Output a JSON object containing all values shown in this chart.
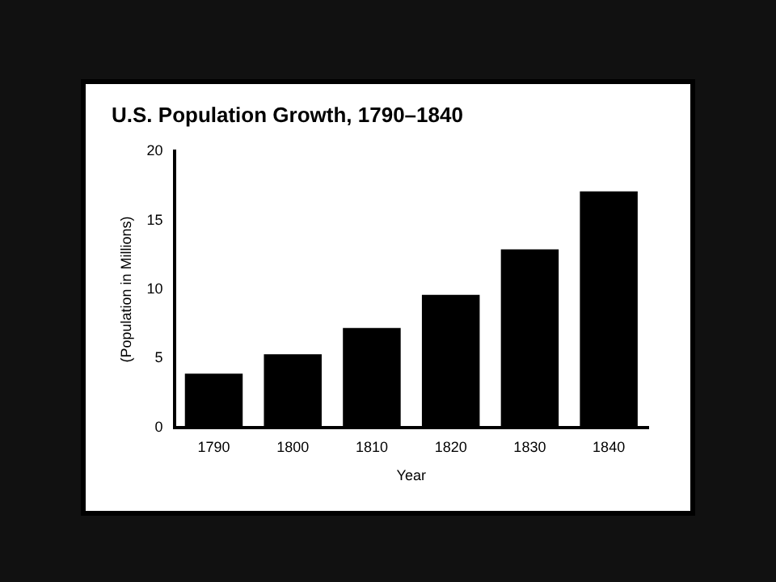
{
  "chart_data": {
    "type": "bar",
    "title": "U.S. Population Growth, 1790–1840",
    "xlabel": "Year",
    "ylabel": "(Population in Millions)",
    "categories": [
      "1790",
      "1800",
      "1810",
      "1820",
      "1830",
      "1840"
    ],
    "values": [
      3.9,
      5.3,
      7.2,
      9.6,
      12.9,
      17.1
    ],
    "color": "#000000",
    "ylim": [
      0,
      20
    ],
    "yticks": [
      0,
      5,
      10,
      15,
      20
    ],
    "grid": false,
    "legend": false
  }
}
